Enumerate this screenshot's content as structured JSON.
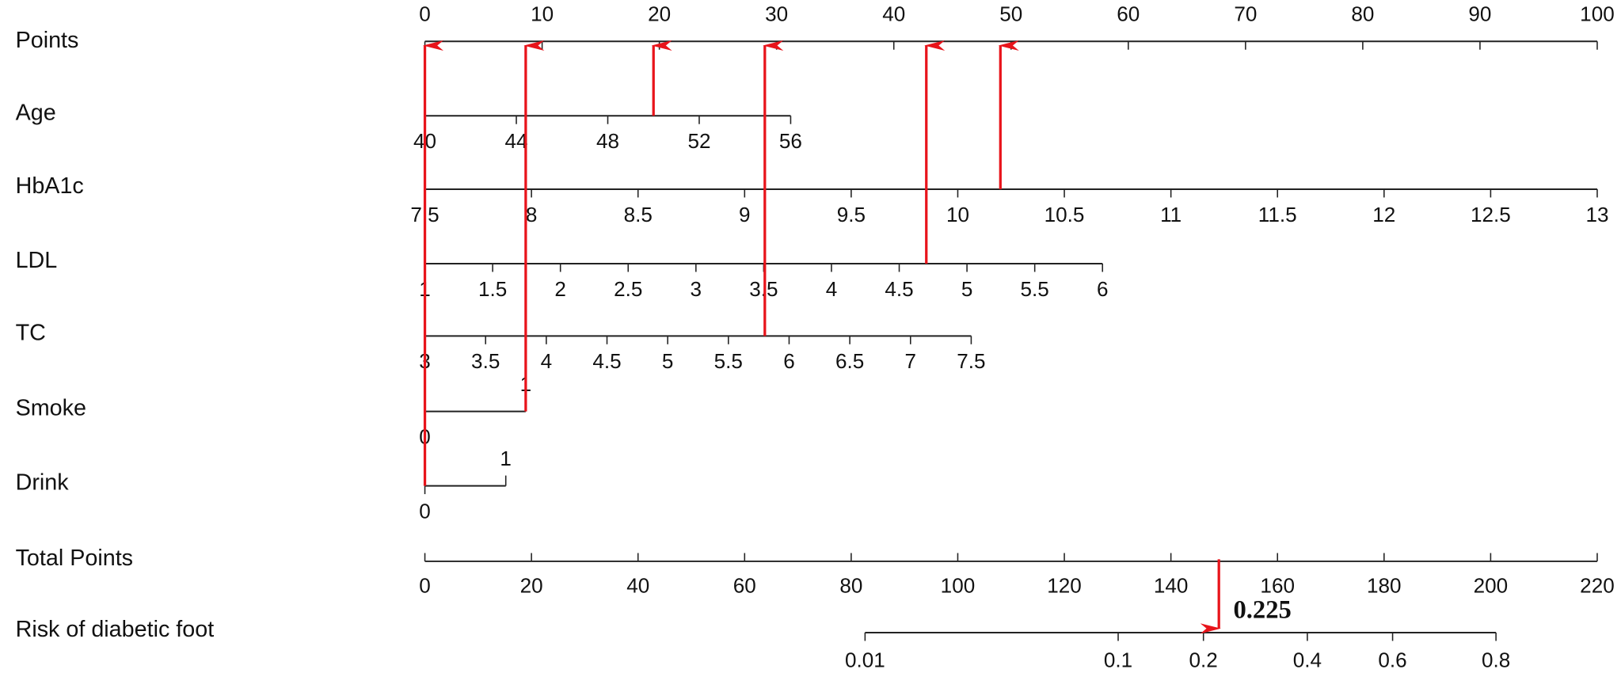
{
  "chart_data": {
    "type": "nomogram",
    "points_axis": {
      "name": "Points",
      "lim": [
        0,
        100
      ],
      "ticks": [
        0,
        10,
        20,
        30,
        40,
        50,
        60,
        70,
        80,
        90,
        100
      ]
    },
    "scales": [
      {
        "name": "Age",
        "lim": [
          40,
          56
        ],
        "points": [
          0,
          31.2
        ],
        "ticks": [
          40,
          44,
          48,
          52,
          56
        ],
        "marked": 50
      },
      {
        "name": "HbA1c",
        "lim": [
          7.5,
          13
        ],
        "points": [
          0,
          100
        ],
        "ticks": [
          7.5,
          8,
          8.5,
          9,
          9.5,
          10,
          10.5,
          11,
          11.5,
          12,
          12.5,
          13
        ],
        "marked": 10.2
      },
      {
        "name": "LDL",
        "lim": [
          1,
          6
        ],
        "points": [
          0,
          57.8
        ],
        "ticks": [
          1,
          1.5,
          2,
          2.5,
          3,
          3.5,
          4,
          4.5,
          5,
          5.5,
          6
        ],
        "marked": 4.7
      },
      {
        "name": "TC",
        "lim": [
          3,
          7.5
        ],
        "points": [
          0,
          46.6
        ],
        "ticks": [
          3,
          3.5,
          4,
          4.5,
          5,
          5.5,
          6,
          6.5,
          7,
          7.5
        ],
        "marked": 5.8
      },
      {
        "name": "Smoke",
        "lim": [
          0,
          1
        ],
        "points": [
          0,
          8.6
        ],
        "ticks": [
          0,
          1
        ],
        "tick_side": "alternate",
        "marked": 1
      },
      {
        "name": "Drink",
        "lim": [
          0,
          1
        ],
        "points": [
          0,
          6.9
        ],
        "ticks": [
          0,
          1
        ],
        "tick_side": "alternate",
        "marked": 0
      }
    ],
    "total_points": {
      "name": "Total Points",
      "lim": [
        0,
        220
      ],
      "ticks": [
        0,
        20,
        40,
        60,
        80,
        100,
        120,
        140,
        160,
        180,
        200,
        220
      ],
      "marked": 149
    },
    "risk": {
      "name": "Risk of diabetic foot",
      "ticks": [
        0.01,
        0.1,
        0.2,
        0.4,
        0.6,
        0.8
      ],
      "tick_points": [
        82.6,
        130.1,
        146.1,
        165.6,
        181.6,
        201.0
      ],
      "marked": 0.225
    },
    "arrow_color": "#e8141b"
  }
}
